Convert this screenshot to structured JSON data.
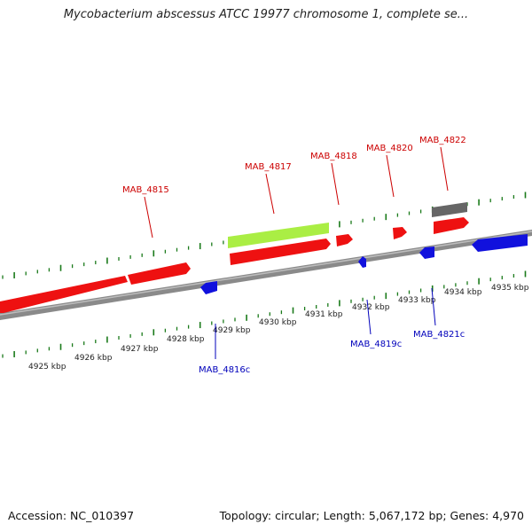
{
  "title": "Mycobacterium abscessus ATCC 19977 chromosome 1, complete se...",
  "footer": {
    "accession": "Accession: NC_010397",
    "summary": "Topology: circular; Length: 5,067,172 bp; Genes: 4,970"
  },
  "colors": {
    "backbone": "#8a8a8a",
    "forward_gene": "#ee1111",
    "reverse_gene": "#1111dd",
    "highlight_gene": "#aaee44",
    "other_feature": "#666666",
    "tick": "#1a7a1a",
    "forward_label": "#cc0000",
    "reverse_label": "#0000bb"
  },
  "scale_labels": [
    {
      "kbp": 4925,
      "text": "4925 kbp"
    },
    {
      "kbp": 4926,
      "text": "4926 kbp"
    },
    {
      "kbp": 4927,
      "text": "4927 kbp"
    },
    {
      "kbp": 4928,
      "text": "4928 kbp"
    },
    {
      "kbp": 4929,
      "text": "4929 kbp"
    },
    {
      "kbp": 4930,
      "text": "4930 kbp"
    },
    {
      "kbp": 4931,
      "text": "4931 kbp"
    },
    {
      "kbp": 4932,
      "text": "4932 kbp"
    },
    {
      "kbp": 4933,
      "text": "4933 kbp"
    },
    {
      "kbp": 4934,
      "text": "4934 kbp"
    },
    {
      "kbp": 4935,
      "text": "4935 kbp"
    }
  ],
  "genes": [
    {
      "name": "MAB_4815",
      "strand": "+",
      "labeled": true
    },
    {
      "name": "MAB_4816c",
      "strand": "-",
      "labeled": true
    },
    {
      "name": "MAB_4817",
      "strand": "+",
      "labeled": true
    },
    {
      "name": "MAB_4818",
      "strand": "+",
      "labeled": true
    },
    {
      "name": "MAB_4819c",
      "strand": "-",
      "labeled": true
    },
    {
      "name": "MAB_4820",
      "strand": "+",
      "labeled": true
    },
    {
      "name": "MAB_4821c",
      "strand": "-",
      "labeled": true
    },
    {
      "name": "MAB_4822",
      "strand": "+",
      "labeled": true
    }
  ]
}
